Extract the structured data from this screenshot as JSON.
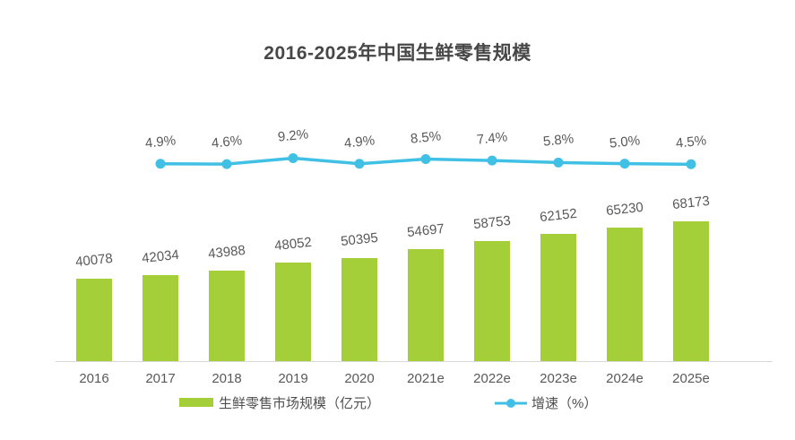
{
  "title": "2016-2025年中国生鲜零售规模",
  "colors": {
    "bar": "#a4cf39",
    "line": "#41c0e6",
    "title_text": "#474747",
    "label_text": "#595959",
    "axis_line": "#d9d9d9",
    "background": "#ffffff"
  },
  "legend": [
    {
      "label": "生鲜零售市场规模（亿元）",
      "type": "bar"
    },
    {
      "label": "增速（%）",
      "type": "line"
    }
  ],
  "chart_data": {
    "type": "bar",
    "title": "2016-2025年中国生鲜零售规模",
    "categories": [
      "2016",
      "2017",
      "2018",
      "2019",
      "2020",
      "2021e",
      "2022e",
      "2023e",
      "2024e",
      "2025e"
    ],
    "series": [
      {
        "name": "生鲜零售市场规模（亿元）",
        "type": "bar",
        "values": [
          40078,
          42034,
          43988,
          48052,
          50395,
          54697,
          58753,
          62152,
          65230,
          68173
        ]
      },
      {
        "name": "增速（%）",
        "type": "line",
        "values": [
          null,
          4.9,
          4.6,
          9.2,
          4.9,
          8.5,
          7.4,
          5.8,
          5.0,
          4.5
        ],
        "value_labels": [
          null,
          "4.9%",
          "4.6%",
          "9.2%",
          "4.9%",
          "8.5%",
          "7.4%",
          "5.8%",
          "5.0%",
          "4.5%"
        ]
      }
    ],
    "xlabel": "",
    "ylabel": "",
    "ylim": [
      0,
      70000
    ],
    "grid": false,
    "y_axis_visible": false,
    "data_labels": true,
    "legend_position": "bottom"
  }
}
